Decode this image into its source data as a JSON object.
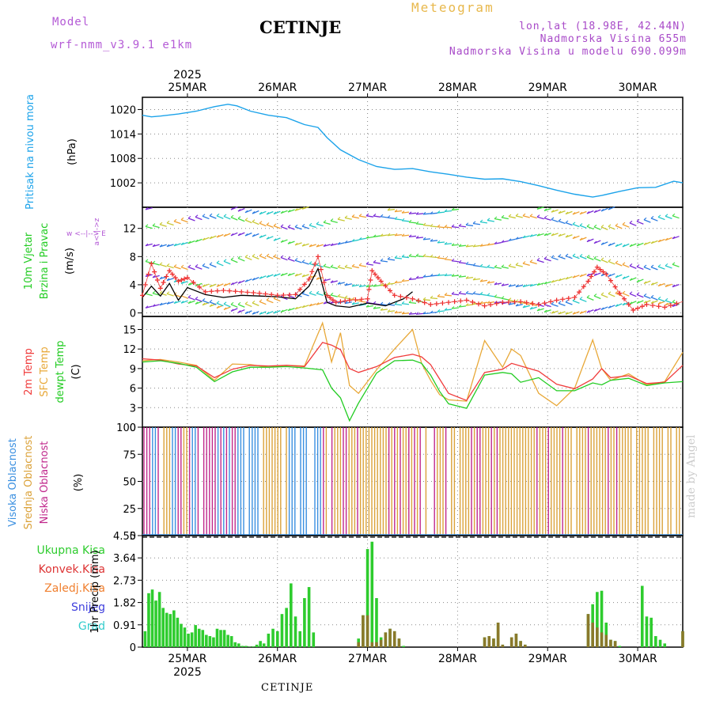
{
  "header": {
    "model_label": "Model",
    "model_name": "wrf-nmm_v3.9.1 e1km",
    "station": "CETINJE",
    "meteogram": "Meteogram",
    "lonlat": "lon,lat (18.98E, 42.44N)",
    "elevation": "Nadmorska Visina 655m",
    "model_elevation": "Nadmorska Visina u modelu 690.099m",
    "footer_station": "CETINJE",
    "watermark": "made by Angel"
  },
  "colors": {
    "pressure": "#1ca3ea",
    "temp2m": "#f03c3c",
    "sfc_temp": "#e8a838",
    "dewpt": "#22cc22",
    "cloud_high": "#3a8fe0",
    "cloud_mid": "#dba23a",
    "cloud_low": "#c0288c",
    "precip_total": "#2ecc2e",
    "precip_conv": "#dd3333",
    "precip_frozen": "#f08030",
    "snow": "#4040dd",
    "grad": "#33cccc",
    "model_text": "#b45ad6",
    "meteogram_text": "#e8b84c",
    "lonlat_text": "#a84ac8"
  },
  "chart_data": {
    "x_axis": {
      "year_label": "2025",
      "days": [
        "25MAR",
        "26MAR",
        "27MAR",
        "28MAR",
        "29MAR",
        "30MAR"
      ],
      "range_days": [
        24.5,
        30.5
      ]
    },
    "pressure": {
      "type": "line",
      "ylabel": "Pritisak na nivou mora",
      "unit": "(hPa)",
      "ylim": [
        996,
        1023
      ],
      "ticks": [
        1002,
        1008,
        1014,
        1020
      ],
      "x": [
        24.5,
        24.6,
        24.7,
        24.9,
        25.1,
        25.3,
        25.45,
        25.55,
        25.7,
        25.9,
        26.1,
        26.3,
        26.45,
        26.55,
        26.7,
        26.9,
        27.1,
        27.3,
        27.5,
        27.7,
        27.9,
        28.1,
        28.3,
        28.5,
        28.7,
        28.9,
        29.1,
        29.3,
        29.5,
        29.6,
        29.8,
        30.0,
        30.2,
        30.4,
        30.5
      ],
      "series": [
        {
          "values": [
            1018.6,
            1018.2,
            1018.4,
            1018.9,
            1019.6,
            1020.7,
            1021.3,
            1020.9,
            1019.6,
            1018.6,
            1018.0,
            1016.3,
            1015.6,
            1013.1,
            1010.1,
            1007.7,
            1006.0,
            1005.3,
            1005.5,
            1004.7,
            1004.1,
            1003.4,
            1002.9,
            1003.0,
            1002.3,
            1001.3,
            1000.2,
            999.2,
            998.5,
            998.9,
            999.9,
            1000.8,
            1000.9,
            1002.4,
            1002.0
          ]
        }
      ]
    },
    "wind": {
      "type": "line",
      "ylabel": "10m Vjetar",
      "ylabel2": "Brzina i Pravac",
      "unit": "(m/s)",
      "compass_label": "w <--|--> E",
      "compass_label2": "a<-|->z",
      "ylim": [
        -0.5,
        15
      ],
      "ticks": [
        0,
        4,
        8,
        12
      ],
      "speed_x": [
        24.5,
        24.6,
        24.7,
        24.8,
        24.9,
        25.0,
        25.2,
        25.4,
        25.6,
        25.8,
        26.0,
        26.2,
        26.35,
        26.45,
        26.55,
        26.65,
        26.8,
        27.0,
        27.2,
        27.4,
        27.5
      ],
      "speed": [
        2.2,
        3.8,
        2.4,
        4.2,
        1.8,
        3.6,
        2.6,
        2.2,
        2.5,
        2.4,
        2.3,
        2.0,
        3.8,
        6.3,
        1.5,
        1.0,
        0.8,
        1.4,
        1.0,
        2.0,
        3.0
      ],
      "gust_x": [
        24.5,
        24.6,
        24.7,
        24.8,
        24.9,
        25.0,
        25.2,
        25.4,
        25.6,
        25.8,
        26.0,
        26.2,
        26.35,
        26.45,
        26.55,
        26.65,
        26.8,
        27.0,
        27.05,
        27.15,
        27.3,
        27.5,
        27.7,
        27.9,
        28.1,
        28.3,
        28.5,
        28.7,
        28.9,
        29.1,
        29.3,
        29.45,
        29.55,
        29.65,
        29.8,
        29.95,
        30.1,
        30.3,
        30.5
      ],
      "gust": [
        2.5,
        7.0,
        3.5,
        6.0,
        4.5,
        5.0,
        3.0,
        3.2,
        3.0,
        2.8,
        2.5,
        2.6,
        4.8,
        8.0,
        2.5,
        1.5,
        1.8,
        2.0,
        6.0,
        4.5,
        2.5,
        2.0,
        1.2,
        1.5,
        1.8,
        1.0,
        1.5,
        1.6,
        1.2,
        1.8,
        2.2,
        4.5,
        6.5,
        5.5,
        2.8,
        0.4,
        1.2,
        0.8,
        1.6
      ]
    },
    "temperature": {
      "type": "line",
      "labels": [
        "2m Temp",
        "SFC Temp",
        "dewpt Temp"
      ],
      "unit": "(C)",
      "ylim": [
        0,
        17
      ],
      "ticks": [
        0,
        3,
        6,
        9,
        12,
        15
      ],
      "x": [
        24.5,
        24.7,
        24.9,
        25.1,
        25.3,
        25.5,
        25.7,
        25.9,
        26.1,
        26.3,
        26.5,
        26.6,
        26.7,
        26.8,
        26.9,
        27.1,
        27.3,
        27.5,
        27.6,
        27.7,
        27.8,
        27.9,
        28.1,
        28.3,
        28.5,
        28.6,
        28.7,
        28.9,
        29.1,
        29.3,
        29.5,
        29.6,
        29.7,
        29.9,
        30.1,
        30.3,
        30.5
      ],
      "series": [
        {
          "name": "2m Temp",
          "values": [
            10.5,
            10.3,
            9.7,
            9.4,
            7.6,
            8.9,
            9.5,
            9.4,
            9.5,
            9.3,
            13.0,
            12.6,
            11.9,
            9.0,
            8.4,
            9.3,
            10.7,
            11.2,
            10.8,
            9.6,
            7.4,
            5.2,
            4.1,
            8.4,
            8.9,
            9.8,
            9.4,
            8.6,
            6.6,
            5.9,
            7.4,
            9.0,
            7.6,
            7.9,
            6.7,
            6.9,
            9.5
          ]
        },
        {
          "name": "SFC Temp",
          "values": [
            10.2,
            10.4,
            10.0,
            9.5,
            7.2,
            9.7,
            9.6,
            9.2,
            9.5,
            9.4,
            16.0,
            10.0,
            14.5,
            6.4,
            5.2,
            8.8,
            12.0,
            15.0,
            9.8,
            7.2,
            5.0,
            4.2,
            4.0,
            13.3,
            9.2,
            12.0,
            11.0,
            5.2,
            3.3,
            6.0,
            13.4,
            9.0,
            7.2,
            8.2,
            6.5,
            7.0,
            11.5
          ]
        },
        {
          "name": "dewpt Temp",
          "values": [
            10.0,
            10.2,
            9.8,
            9.2,
            7.0,
            8.5,
            9.2,
            9.2,
            9.3,
            9.1,
            8.8,
            6.0,
            4.5,
            1.0,
            3.7,
            8.3,
            10.2,
            10.3,
            9.8,
            8.0,
            5.5,
            3.6,
            2.9,
            8.0,
            8.4,
            8.2,
            6.9,
            7.6,
            5.6,
            5.6,
            6.8,
            6.5,
            7.2,
            7.5,
            6.4,
            6.8,
            7.0
          ]
        }
      ]
    },
    "clouds": {
      "type": "bar",
      "labels": [
        "Visoka Oblacnost",
        "Srednja Oblacnost",
        "Niska Oblacnost"
      ],
      "unit": "(%)",
      "ylim": [
        0,
        100
      ],
      "ticks": [
        0,
        25,
        50,
        75,
        100
      ]
    },
    "precip": {
      "type": "bar",
      "labels": [
        "Ukupna Kisa",
        "Konvek.Kisa",
        "Zaledj.Kisa",
        "Snijeg",
        "Grad"
      ],
      "ylabel": "1hr Precip (mm)",
      "ylim": [
        0,
        4.55
      ],
      "ticks": [
        0,
        0.91,
        1.82,
        2.73,
        3.64,
        4.55
      ],
      "tick_labels": [
        "0",
        "0.91",
        "1.82",
        "2.73",
        "3.64",
        "4.55"
      ],
      "x": [
        24.53,
        24.57,
        24.61,
        24.65,
        24.69,
        24.73,
        24.77,
        24.81,
        24.85,
        24.89,
        24.93,
        24.97,
        25.01,
        25.05,
        25.09,
        25.13,
        25.17,
        25.21,
        25.25,
        25.29,
        25.33,
        25.37,
        25.41,
        25.45,
        25.49,
        25.53,
        25.57,
        25.61,
        25.65,
        25.69,
        25.73,
        25.77,
        25.81,
        25.85,
        25.9,
        25.95,
        26.0,
        26.05,
        26.1,
        26.15,
        26.2,
        26.25,
        26.3,
        26.35,
        26.4,
        26.45,
        26.5,
        26.55,
        26.9,
        26.95,
        27.0,
        27.05,
        27.1,
        27.15,
        27.2,
        27.25,
        27.3,
        27.35,
        27.4,
        27.45,
        27.5,
        28.3,
        28.35,
        28.4,
        28.45,
        28.5,
        28.55,
        28.6,
        28.65,
        28.7,
        28.75,
        29.45,
        29.5,
        29.55,
        29.6,
        29.65,
        29.7,
        29.75,
        29.8,
        29.85,
        30.05,
        30.1,
        30.15,
        30.2,
        30.25,
        30.3,
        30.45,
        30.5
      ],
      "total": [
        0.65,
        2.2,
        2.35,
        1.9,
        2.25,
        1.6,
        1.4,
        1.35,
        1.5,
        1.2,
        0.95,
        0.8,
        0.55,
        0.6,
        0.9,
        0.75,
        0.7,
        0.5,
        0.45,
        0.4,
        0.75,
        0.7,
        0.7,
        0.5,
        0.45,
        0.2,
        0.15,
        0.05,
        0.05,
        0.02,
        0.03,
        0.1,
        0.25,
        0.15,
        0.55,
        0.75,
        0.65,
        1.35,
        1.6,
        2.6,
        1.25,
        0.65,
        2.0,
        2.45,
        0.6,
        0.0,
        0.0,
        0.0,
        0.35,
        1.3,
        4.0,
        4.3,
        2.0,
        0.4,
        0.6,
        0.75,
        0.65,
        0.35,
        0.05,
        0.0,
        0.0,
        0.4,
        0.45,
        0.35,
        1.0,
        0.1,
        0.0,
        0.4,
        0.55,
        0.25,
        0.1,
        1.35,
        1.75,
        2.25,
        2.3,
        1.0,
        0.3,
        0.25,
        0.05,
        0.0,
        2.5,
        1.25,
        1.2,
        0.45,
        0.3,
        0.15,
        0.0,
        0.65
      ],
      "convective": [
        0,
        0,
        0,
        0,
        0,
        0,
        0,
        0,
        0,
        0,
        0,
        0,
        0,
        0,
        0,
        0,
        0,
        0,
        0,
        0,
        0,
        0,
        0,
        0,
        0,
        0,
        0,
        0,
        0,
        0,
        0,
        0,
        0,
        0,
        0,
        0,
        0,
        0,
        0,
        0,
        0,
        0,
        0,
        0,
        0,
        0,
        0,
        0,
        0.2,
        1.3,
        1.3,
        0.2,
        0.2,
        0.3,
        0.6,
        0.75,
        0.65,
        0.35,
        0,
        0,
        0,
        0.4,
        0.45,
        0.35,
        1.0,
        0.1,
        0,
        0.4,
        0.55,
        0.25,
        0.1,
        1.35,
        1.0,
        0.8,
        0.6,
        0.5,
        0.3,
        0.25,
        0,
        0,
        0,
        0,
        0,
        0,
        0,
        0,
        0,
        0.65
      ]
    }
  }
}
